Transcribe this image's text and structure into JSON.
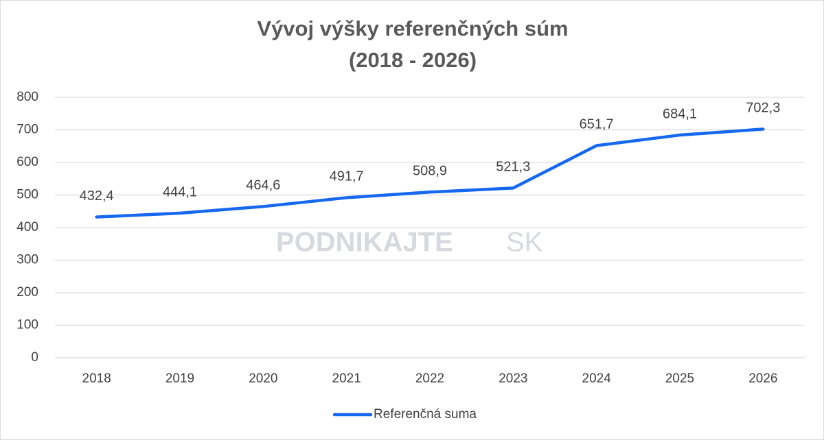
{
  "chart_data": {
    "type": "line",
    "title": "Vývoj výšky referenčných súm",
    "subtitle": "(2018 - 2026)",
    "watermark": [
      "PODNIKAJTE",
      "SK"
    ],
    "categories": [
      "2018",
      "2019",
      "2020",
      "2021",
      "2022",
      "2023",
      "2024",
      "2025",
      "2026"
    ],
    "series": [
      {
        "name": "Referenčná suma",
        "color": "#1669ee",
        "values": [
          432.4,
          444.1,
          464.6,
          491.7,
          508.9,
          521.3,
          651.7,
          684.1,
          702.3
        ],
        "value_labels": [
          "432,4",
          "444,1",
          "464,6",
          "491,7",
          "508,9",
          "521,3",
          "651,7",
          "684,1",
          "702,3"
        ]
      }
    ],
    "ylim": [
      0,
      800
    ],
    "yticks": [
      0,
      100,
      200,
      300,
      400,
      500,
      600,
      700,
      800
    ],
    "grid": true,
    "legend": "bottom"
  }
}
